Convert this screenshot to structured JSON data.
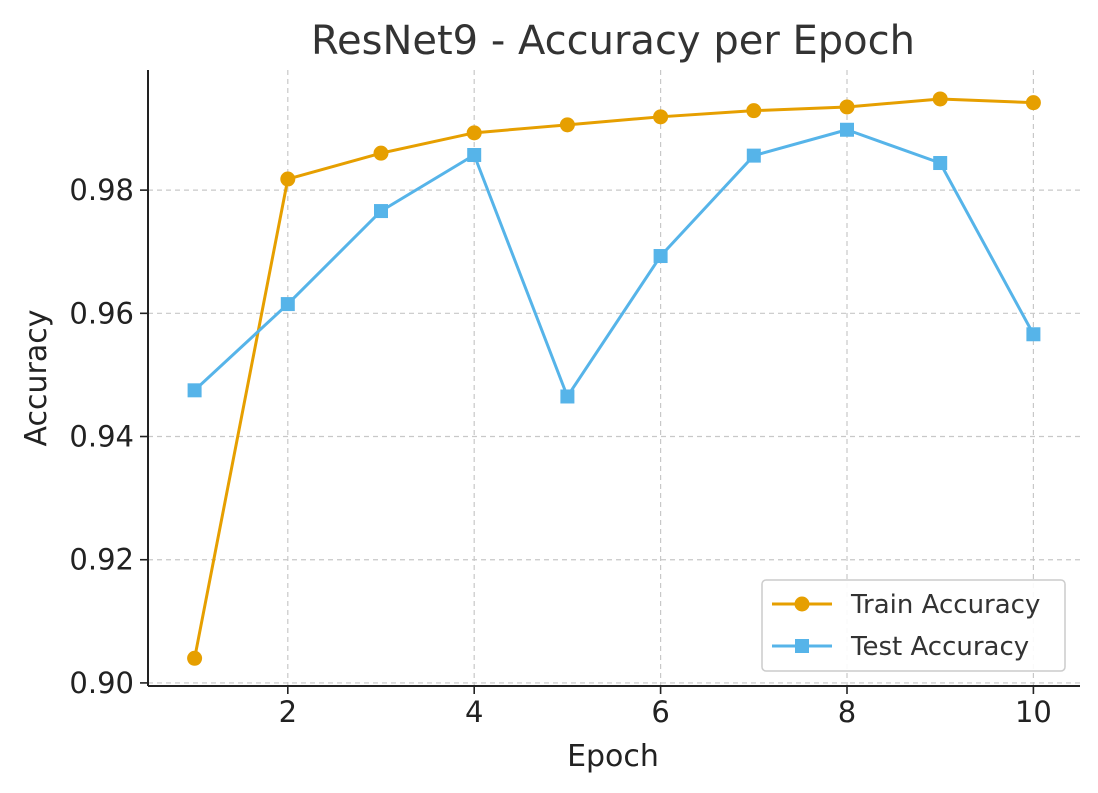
{
  "chart_data": {
    "type": "line",
    "title": "ResNet9 - Accuracy per Epoch",
    "xlabel": "Epoch",
    "ylabel": "Accuracy",
    "x": [
      1,
      2,
      3,
      4,
      5,
      6,
      7,
      8,
      9,
      10
    ],
    "xlim": [
      0.5,
      10.5
    ],
    "ylim": [
      0.8995,
      0.9995
    ],
    "xticks": [
      2,
      4,
      6,
      8,
      10
    ],
    "xtick_labels": [
      "2",
      "4",
      "6",
      "8",
      "10"
    ],
    "yticks": [
      0.9,
      0.92,
      0.94,
      0.96,
      0.98
    ],
    "ytick_labels": [
      "0.90",
      "0.92",
      "0.94",
      "0.96",
      "0.98"
    ],
    "grid": true,
    "legend_position": "bottom-right",
    "series": [
      {
        "name": "Train Accuracy",
        "color": "#E69F00",
        "marker": "circle",
        "values": [
          0.904,
          0.9818,
          0.986,
          0.9893,
          0.9906,
          0.9919,
          0.9929,
          0.9935,
          0.9948,
          0.9942
        ]
      },
      {
        "name": "Test Accuracy",
        "color": "#56B4E9",
        "marker": "square",
        "values": [
          0.9475,
          0.9615,
          0.9766,
          0.9857,
          0.9465,
          0.9693,
          0.9856,
          0.9898,
          0.9844,
          0.9566
        ]
      }
    ]
  }
}
